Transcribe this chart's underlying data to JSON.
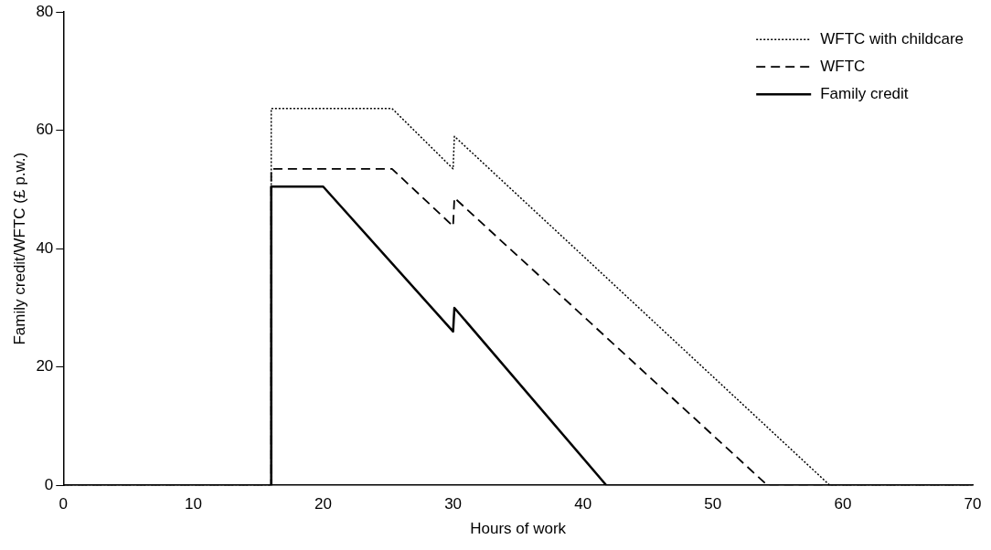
{
  "chart_data": {
    "type": "line",
    "xlabel": "Hours of work",
    "ylabel": "Family credit/WFTC (£ p.w.)",
    "xlim": [
      0,
      70
    ],
    "xticks": [
      0,
      10,
      20,
      30,
      40,
      50,
      60,
      70
    ],
    "ylim": [
      0,
      80
    ],
    "yticks": [
      0,
      20,
      40,
      60,
      80
    ],
    "grid": false,
    "legend": "top right",
    "marker": "none",
    "series": [
      {
        "name": "WFTC with childcare",
        "color": "#000000",
        "line_style": "dotted",
        "x": [
          0,
          16,
          16,
          25.3,
          30,
          30.1,
          59,
          70
        ],
        "values": [
          0,
          0,
          63.7,
          63.7,
          53.5,
          59,
          0,
          0
        ]
      },
      {
        "name": "WFTC",
        "color": "#000000",
        "line_style": "dashed",
        "x": [
          0,
          16,
          16,
          25.3,
          30,
          30.1,
          54.2,
          70
        ],
        "values": [
          0,
          0,
          53.5,
          53.5,
          43.8,
          48.6,
          0,
          0
        ]
      },
      {
        "name": "Family credit",
        "color": "#000000",
        "line_style": "solid",
        "x": [
          0,
          16,
          16,
          20,
          30,
          30.1,
          41.8,
          70
        ],
        "values": [
          0,
          0,
          50.5,
          50.5,
          26,
          30,
          0,
          0
        ]
      }
    ]
  }
}
